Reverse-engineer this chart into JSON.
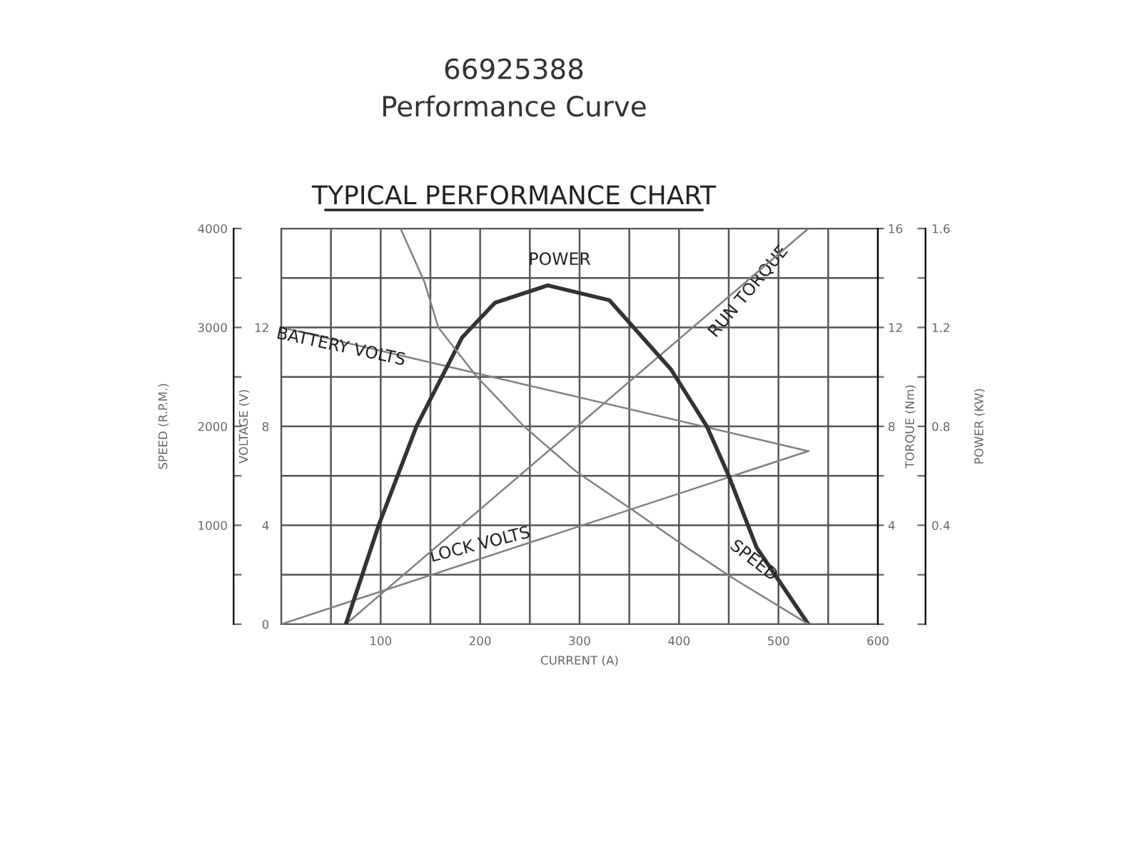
{
  "chart_data": [
    {
      "type": "line",
      "title": "TYPICAL PERFORMANCE CHART",
      "subtitle": "66925388\nPerformance Curve",
      "xlabel": "CURRENT (A)",
      "ylabel": "VOLTAGE (V)",
      "y2label": "TORQUE (Nm)",
      "y3label": "POWER (KW)",
      "xlim": [
        0,
        600
      ],
      "xticks": [
        {
          "value": 0,
          "label": null
        },
        {
          "value": 50,
          "label": null
        },
        100,
        {
          "value": 150,
          "label": null
        },
        200,
        {
          "value": 250,
          "label": null
        },
        300,
        {
          "value": 350,
          "label": null
        },
        400,
        {
          "value": 450,
          "label": null
        },
        500,
        {
          "value": 550,
          "label": null
        },
        600
      ],
      "ylim": [
        0,
        16
      ],
      "yticks": [
        0,
        {
          "value": 2,
          "label": null
        },
        4,
        {
          "value": 6,
          "label": null
        },
        8,
        {
          "value": 10,
          "label": null
        },
        12,
        {
          "value": 14,
          "label": null
        },
        {
          "value": 16,
          "label": null
        }
      ],
      "y2lim": [
        0,
        16
      ],
      "y2ticks": [
        {
          "value": 0,
          "label": null
        },
        {
          "value": 2,
          "label": null
        },
        4,
        {
          "value": 6,
          "label": null
        },
        8,
        {
          "value": 10,
          "label": null
        },
        12,
        {
          "value": 14,
          "label": null
        },
        16
      ],
      "y3lim": [
        0,
        1.6
      ],
      "y3ticks": [
        {
          "value": 0,
          "label": null
        },
        {
          "value": 0.2,
          "label": null
        },
        0.4,
        {
          "value": 0.6,
          "label": null
        },
        0.8,
        {
          "value": 1.0,
          "label": null
        },
        1.2,
        {
          "value": 1.4,
          "label": null
        },
        1.6
      ],
      "grid": true,
      "marker": "none",
      "line_style": "solid",
      "series": [
        {
          "name": "POWER",
          "color": "#333333",
          "axis": "y3",
          "x": [
            65,
            98,
            136,
            182,
            215,
            268,
            330,
            392,
            428,
            450,
            478,
            530
          ],
          "values": [
            0,
            0.4,
            0.8,
            1.16,
            1.3,
            1.37,
            1.31,
            1.03,
            0.8,
            0.6,
            0.31,
            0
          ]
        },
        {
          "name": "BATTERY VOLTS",
          "color": "#808080",
          "x": [
            0,
            530
          ],
          "values": [
            12,
            7
          ]
        },
        {
          "name": "RUN TORQUE",
          "color": "#808080",
          "axis": "y2",
          "x": [
            65,
            530
          ],
          "values": [
            0,
            16
          ]
        },
        {
          "name": "LOCK VOLTS",
          "color": "#808080",
          "x": [
            0,
            530
          ],
          "values": [
            0,
            7
          ]
        }
      ]
    },
    {
      "type": "line",
      "ylabel": "SPEED (R.P.M.)",
      "xlim": [
        0,
        600
      ],
      "tick_labels": "y",
      "ylim": [
        0,
        4000
      ],
      "yticks": [
        {
          "value": 0,
          "label": null
        },
        {
          "value": 500,
          "label": null
        },
        1000,
        {
          "value": 1500,
          "label": null
        },
        2000,
        {
          "value": 2500,
          "label": null
        },
        3000,
        {
          "value": 3500,
          "label": null
        },
        4000
      ],
      "marker": "none",
      "line_style": "solid",
      "series": [
        {
          "name": "SPEED",
          "color": "#808080",
          "x": [
            120,
            144,
            158,
            196,
            244,
            297,
            354,
            407,
            455,
            530
          ],
          "values": [
            4000,
            3460,
            3000,
            2510,
            2000,
            1540,
            1150,
            780,
            460,
            0
          ]
        }
      ]
    }
  ]
}
